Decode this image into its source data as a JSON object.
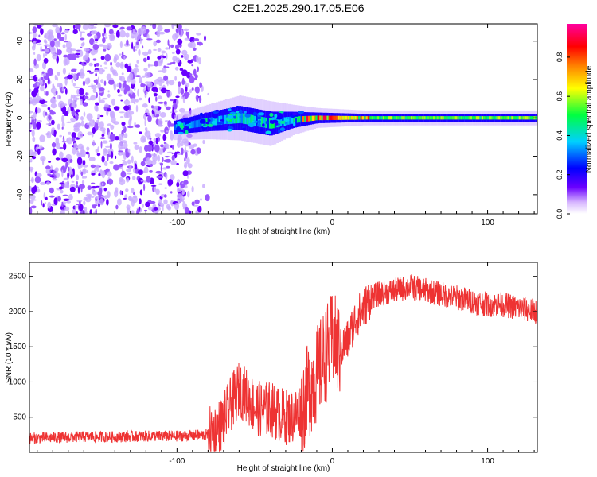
{
  "title": "C2E1.2025.290.17.05.E06",
  "chart_data": [
    {
      "type": "heatmap",
      "title": "C2E1.2025.290.17.05.E06",
      "xlabel": "Height of straight line (km)",
      "ylabel": "Frequency (Hz)",
      "xlim": [
        -195,
        132
      ],
      "ylim": [
        -50,
        49
      ],
      "xticks": [
        -100,
        0,
        100
      ],
      "xtick_labels": [
        "-100",
        "0",
        "100"
      ],
      "yticks": [
        -40,
        -20,
        0,
        20,
        40
      ],
      "ytick_labels": [
        "-40",
        "-20",
        "0",
        "20",
        "40"
      ],
      "description_regions": {
        "noise_x_range": [
          -195,
          -78
        ],
        "signal_band": [
          {
            "x": -102,
            "f_center": -5,
            "f_width": 5
          },
          {
            "x": -80,
            "f_center": -2,
            "f_width": 7
          },
          {
            "x": -60,
            "f_center": 0,
            "f_width": 9
          },
          {
            "x": -40,
            "f_center": -3,
            "f_width": 9
          },
          {
            "x": -25,
            "f_center": -1,
            "f_width": 6
          },
          {
            "x": -10,
            "f_center": 0,
            "f_width": 4
          },
          {
            "x": 20,
            "f_center": 0,
            "f_width": 3
          },
          {
            "x": 132,
            "f_center": 0,
            "f_width": 3
          }
        ]
      },
      "colorbar": {
        "label": "Normalized spectral amplitude",
        "ticks": [
          0.0,
          0.2,
          0.4,
          0.6,
          0.8
        ],
        "tick_labels": [
          "0.0",
          "0.2",
          "0.4",
          "0.6",
          "0.8"
        ],
        "range": [
          0,
          0.97
        ],
        "colors": [
          "#ffffff",
          "#6a00ff",
          "#0000ff",
          "#00d0ff",
          "#00ff40",
          "#ffff00",
          "#ff8000",
          "#ff0000",
          "#ff00a0"
        ]
      }
    },
    {
      "type": "line",
      "xlabel": "Height of straight line (km)",
      "ylabel": "SNR (10 * v/v)",
      "xlim": [
        -195,
        132
      ],
      "ylim": [
        0,
        2700
      ],
      "xticks": [
        -100,
        0,
        100
      ],
      "xtick_labels": [
        "-100",
        "0",
        "100"
      ],
      "yticks": [
        500,
        1000,
        1500,
        2000,
        2500
      ],
      "ytick_labels": [
        "500",
        "1000",
        "1500",
        "2000",
        "2500"
      ],
      "series": [
        {
          "name": "SNR",
          "color": "#ee3333",
          "x": [
            -195,
            -180,
            -160,
            -140,
            -120,
            -100,
            -90,
            -80,
            -75,
            -70,
            -65,
            -60,
            -55,
            -50,
            -45,
            -40,
            -35,
            -30,
            -25,
            -20,
            -15,
            -10,
            -5,
            0,
            5,
            10,
            15,
            20,
            25,
            30,
            40,
            50,
            60,
            70,
            80,
            90,
            100,
            110,
            120,
            132
          ],
          "values": [
            200,
            210,
            220,
            220,
            230,
            230,
            240,
            250,
            300,
            450,
            700,
            900,
            800,
            650,
            600,
            620,
            550,
            500,
            520,
            600,
            900,
            1100,
            1350,
            1600,
            1450,
            1600,
            1900,
            2050,
            2200,
            2250,
            2300,
            2350,
            2300,
            2250,
            2200,
            2150,
            2100,
            2100,
            2050,
            2000
          ]
        }
      ]
    }
  ]
}
